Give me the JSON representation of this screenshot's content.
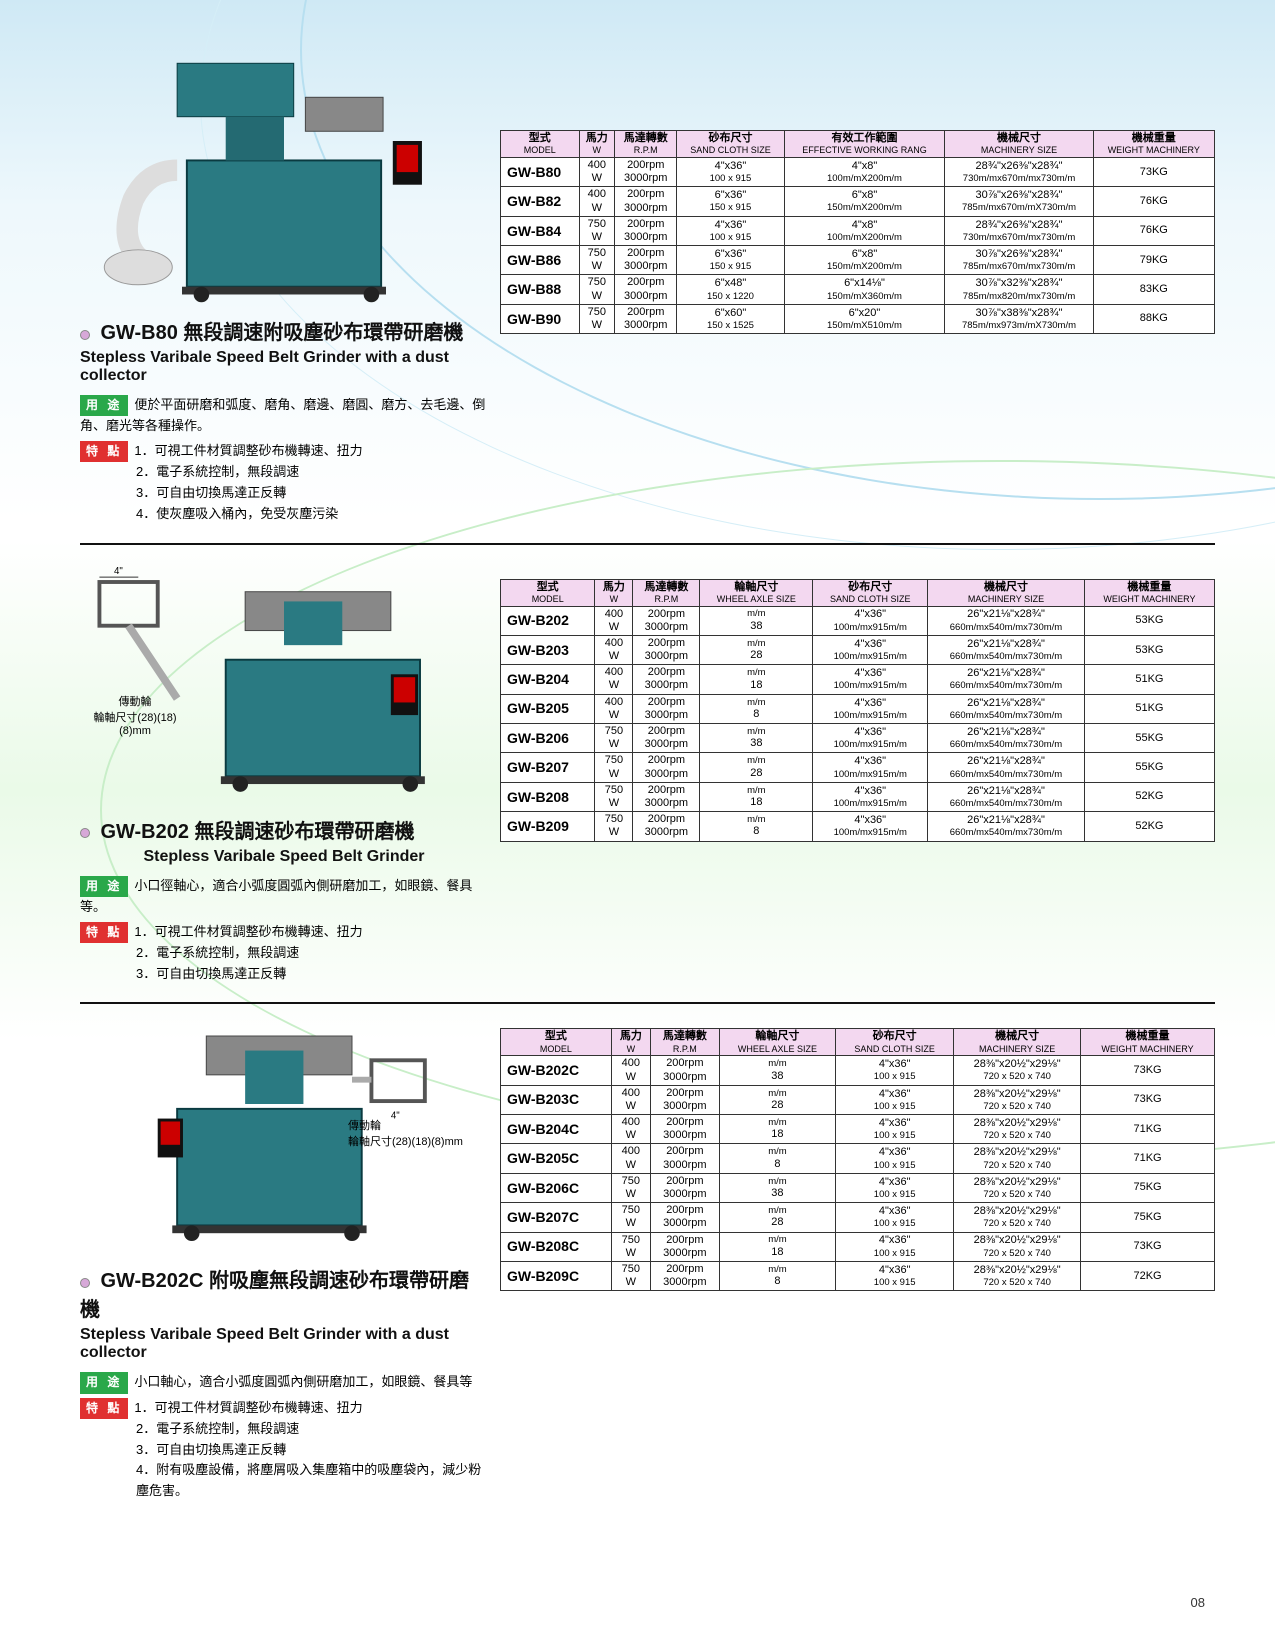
{
  "page_number": "08",
  "colors": {
    "header_bg": "#f3d8f0",
    "border": "#333333",
    "tag_use": "#2aa84a",
    "tag_feat": "#e03030",
    "bullet": "#d7a8d8"
  },
  "labels": {
    "use": "用 途",
    "feat": "特 點"
  },
  "section1": {
    "zh_title": "GW-B80 無段調速附吸塵砂布環帶研磨機",
    "en_title": "Stepless Varibale Speed Belt Grinder with a dust collector",
    "use_text": "便於平面研磨和弧度、磨角、磨邊、磨圓、磨方、去毛邊、倒角、磨光等各種操作。",
    "features": [
      "1．可視工件材質調整砂布機轉速、扭力",
      "2．電子系統控制，無段調速",
      "3．可自由切換馬達正反轉",
      "4．使灰塵吸入桶內，免受灰塵污染"
    ],
    "headers": [
      {
        "zh": "型式",
        "en": "MODEL"
      },
      {
        "zh": "馬力",
        "en": "W"
      },
      {
        "zh": "馬達轉數",
        "en": "R.P.M"
      },
      {
        "zh": "砂布尺寸",
        "en": "SAND CLOTH SIZE"
      },
      {
        "zh": "有效工作範圍",
        "en": "EFFECTIVE WORKING RANG"
      },
      {
        "zh": "機械尺寸",
        "en": "MACHINERY SIZE"
      },
      {
        "zh": "機械重量",
        "en": "WEIGHT MACHINERY"
      }
    ],
    "rows": [
      {
        "model": "GW-B80",
        "w": "400 W",
        "rpm": "200rpm / 3000rpm",
        "sand_top": "4\"x36\"",
        "sand_bot": "100 x 915",
        "eff_top": "4\"x8\"",
        "eff_bot": "100m/mX200m/m",
        "size_top": "28¾\"x26⅜\"x28¾\"",
        "size_bot": "730m/mx670m/mx730m/m",
        "wt": "73KG"
      },
      {
        "model": "GW-B82",
        "w": "400 W",
        "rpm": "200rpm / 3000rpm",
        "sand_top": "6\"x36\"",
        "sand_bot": "150 x 915",
        "eff_top": "6\"x8\"",
        "eff_bot": "150m/mX200m/m",
        "size_top": "30⅞\"x26⅜\"x28¾\"",
        "size_bot": "785m/mx670m/mX730m/m",
        "wt": "76KG"
      },
      {
        "model": "GW-B84",
        "w": "750 W",
        "rpm": "200rpm / 3000rpm",
        "sand_top": "4\"x36\"",
        "sand_bot": "100 x 915",
        "eff_top": "4\"x8\"",
        "eff_bot": "100m/mX200m/m",
        "size_top": "28¾\"x26⅜\"x28¾\"",
        "size_bot": "730m/mx670m/mx730m/m",
        "wt": "76KG"
      },
      {
        "model": "GW-B86",
        "w": "750 W",
        "rpm": "200rpm / 3000rpm",
        "sand_top": "6\"x36\"",
        "sand_bot": "150 x 915",
        "eff_top": "6\"x8\"",
        "eff_bot": "150m/mX200m/m",
        "size_top": "30⅞\"x26⅜\"x28¾\"",
        "size_bot": "785m/mx670m/mx730m/m",
        "wt": "79KG"
      },
      {
        "model": "GW-B88",
        "w": "750 W",
        "rpm": "200rpm / 3000rpm",
        "sand_top": "6\"x48\"",
        "sand_bot": "150 x 1220",
        "eff_top": "6\"x14⅛\"",
        "eff_bot": "150m/mX360m/m",
        "size_top": "30⅞\"x32⅜\"x28¾\"",
        "size_bot": "785m/mx820m/mx730m/m",
        "wt": "83KG"
      },
      {
        "model": "GW-B90",
        "w": "750 W",
        "rpm": "200rpm / 3000rpm",
        "sand_top": "6\"x60\"",
        "sand_bot": "150 x 1525",
        "eff_top": "6\"x20\"",
        "eff_bot": "150m/mX510m/m",
        "size_top": "30⅞\"x38⅜\"x28¾\"",
        "size_bot": "785m/mx973m/mX730m/m",
        "wt": "88KG"
      }
    ]
  },
  "section2": {
    "zh_title": "GW-B202 無段調速砂布環帶研磨機",
    "en_title": "Stepless Varibale Speed Belt Grinder",
    "aux_label1": "傳動輪",
    "aux_label2": "輪軸尺寸(28)(18)(8)mm",
    "use_text": "小口徑軸心，適合小弧度圓弧內側研磨加工，如眼鏡、餐具等。",
    "features": [
      "1．可視工件材質調整砂布機轉速、扭力",
      "2．電子系統控制，無段調速",
      "3．可自由切換馬達正反轉"
    ],
    "headers": [
      {
        "zh": "型式",
        "en": "MODEL"
      },
      {
        "zh": "馬力",
        "en": "W"
      },
      {
        "zh": "馬達轉數",
        "en": "R.P.M"
      },
      {
        "zh": "輪軸尺寸",
        "en": "WHEEL AXLE SIZE"
      },
      {
        "zh": "砂布尺寸",
        "en": "SAND CLOTH SIZE"
      },
      {
        "zh": "機械尺寸",
        "en": "MACHINERY SIZE"
      },
      {
        "zh": "機械重量",
        "en": "WEIGHT MACHINERY"
      }
    ],
    "rows": [
      {
        "model": "GW-B202",
        "w": "400 W",
        "rpm": "200rpm / 3000rpm",
        "axle": "38",
        "sand_top": "4\"x36\"",
        "sand_bot": "100m/mx915m/m",
        "size_top": "26\"x21⅛\"x28¾\"",
        "size_bot": "660m/mx540m/mx730m/m",
        "wt": "53KG"
      },
      {
        "model": "GW-B203",
        "w": "400 W",
        "rpm": "200rpm / 3000rpm",
        "axle": "28",
        "sand_top": "4\"x36\"",
        "sand_bot": "100m/mx915m/m",
        "size_top": "26\"x21⅛\"x28¾\"",
        "size_bot": "660m/mx540m/mx730m/m",
        "wt": "53KG"
      },
      {
        "model": "GW-B204",
        "w": "400 W",
        "rpm": "200rpm / 3000rpm",
        "axle": "18",
        "sand_top": "4\"x36\"",
        "sand_bot": "100m/mx915m/m",
        "size_top": "26\"x21⅛\"x28¾\"",
        "size_bot": "660m/mx540m/mx730m/m",
        "wt": "51KG"
      },
      {
        "model": "GW-B205",
        "w": "400 W",
        "rpm": "200rpm / 3000rpm",
        "axle": "8",
        "sand_top": "4\"x36\"",
        "sand_bot": "100m/mx915m/m",
        "size_top": "26\"x21⅛\"x28¾\"",
        "size_bot": "660m/mx540m/mx730m/m",
        "wt": "51KG"
      },
      {
        "model": "GW-B206",
        "w": "750 W",
        "rpm": "200rpm / 3000rpm",
        "axle": "38",
        "sand_top": "4\"x36\"",
        "sand_bot": "100m/mx915m/m",
        "size_top": "26\"x21⅛\"x28¾\"",
        "size_bot": "660m/mx540m/mx730m/m",
        "wt": "55KG"
      },
      {
        "model": "GW-B207",
        "w": "750 W",
        "rpm": "200rpm / 3000rpm",
        "axle": "28",
        "sand_top": "4\"x36\"",
        "sand_bot": "100m/mx915m/m",
        "size_top": "26\"x21⅛\"x28¾\"",
        "size_bot": "660m/mx540m/mx730m/m",
        "wt": "55KG"
      },
      {
        "model": "GW-B208",
        "w": "750 W",
        "rpm": "200rpm / 3000rpm",
        "axle": "18",
        "sand_top": "4\"x36\"",
        "sand_bot": "100m/mx915m/m",
        "size_top": "26\"x21⅛\"x28¾\"",
        "size_bot": "660m/mx540m/mx730m/m",
        "wt": "52KG"
      },
      {
        "model": "GW-B209",
        "w": "750 W",
        "rpm": "200rpm / 3000rpm",
        "axle": "8",
        "sand_top": "4\"x36\"",
        "sand_bot": "100m/mx915m/m",
        "size_top": "26\"x21⅛\"x28¾\"",
        "size_bot": "660m/mx540m/mx730m/m",
        "wt": "52KG"
      }
    ]
  },
  "section3": {
    "zh_title": "GW-B202C 附吸塵無段調速砂布環帶研磨機",
    "en_title": "Stepless Varibale Speed Belt Grinder with a dust collector",
    "aux_label1": "傳動輪",
    "aux_label2": "輪軸尺寸(28)(18)(8)mm",
    "use_text": "小口軸心，適合小弧度圓弧內側研磨加工，如眼鏡、餐具等",
    "features": [
      "1．可視工件材質調整砂布機轉速、扭力",
      "2．電子系統控制，無段調速",
      "3．可自由切換馬達正反轉",
      "4．附有吸塵設備，將塵屑吸入集塵箱中的吸塵袋內，減少粉塵危害。"
    ],
    "headers": [
      {
        "zh": "型式",
        "en": "MODEL"
      },
      {
        "zh": "馬力",
        "en": "W"
      },
      {
        "zh": "馬達轉數",
        "en": "R.P.M"
      },
      {
        "zh": "輪軸尺寸",
        "en": "WHEEL AXLE SIZE"
      },
      {
        "zh": "砂布尺寸",
        "en": "SAND CLOTH SIZE"
      },
      {
        "zh": "機械尺寸",
        "en": "MACHINERY SIZE"
      },
      {
        "zh": "機械重量",
        "en": "WEIGHT MACHINERY"
      }
    ],
    "rows": [
      {
        "model": "GW-B202C",
        "w": "400 W",
        "rpm": "200rpm / 3000rpm",
        "axle": "38",
        "sand_top": "4\"x36\"",
        "sand_bot": "100 x 915",
        "size_top": "28⅜\"x20½\"x29⅛\"",
        "size_bot": "720 x 520 x 740",
        "wt": "73KG"
      },
      {
        "model": "GW-B203C",
        "w": "400 W",
        "rpm": "200rpm / 3000rpm",
        "axle": "28",
        "sand_top": "4\"x36\"",
        "sand_bot": "100 x 915",
        "size_top": "28⅜\"x20½\"x29⅛\"",
        "size_bot": "720 x 520 x 740",
        "wt": "73KG"
      },
      {
        "model": "GW-B204C",
        "w": "400 W",
        "rpm": "200rpm / 3000rpm",
        "axle": "18",
        "sand_top": "4\"x36\"",
        "sand_bot": "100 x 915",
        "size_top": "28⅜\"x20½\"x29⅛\"",
        "size_bot": "720 x 520 x 740",
        "wt": "71KG"
      },
      {
        "model": "GW-B205C",
        "w": "400 W",
        "rpm": "200rpm / 3000rpm",
        "axle": "8",
        "sand_top": "4\"x36\"",
        "sand_bot": "100 x 915",
        "size_top": "28⅜\"x20½\"x29⅛\"",
        "size_bot": "720 x 520 x 740",
        "wt": "71KG"
      },
      {
        "model": "GW-B206C",
        "w": "750 W",
        "rpm": "200rpm / 3000rpm",
        "axle": "38",
        "sand_top": "4\"x36\"",
        "sand_bot": "100 x 915",
        "size_top": "28⅜\"x20½\"x29⅛\"",
        "size_bot": "720 x 520 x 740",
        "wt": "75KG"
      },
      {
        "model": "GW-B207C",
        "w": "750 W",
        "rpm": "200rpm / 3000rpm",
        "axle": "28",
        "sand_top": "4\"x36\"",
        "sand_bot": "100 x 915",
        "size_top": "28⅜\"x20½\"x29⅛\"",
        "size_bot": "720 x 520 x 740",
        "wt": "75KG"
      },
      {
        "model": "GW-B208C",
        "w": "750 W",
        "rpm": "200rpm / 3000rpm",
        "axle": "18",
        "sand_top": "4\"x36\"",
        "sand_bot": "100 x 915",
        "size_top": "28⅜\"x20½\"x29⅛\"",
        "size_bot": "720 x 520 x 740",
        "wt": "73KG"
      },
      {
        "model": "GW-B209C",
        "w": "750 W",
        "rpm": "200rpm / 3000rpm",
        "axle": "8",
        "sand_top": "4\"x36\"",
        "sand_bot": "100 x 915",
        "size_top": "28⅜\"x20½\"x29⅛\"",
        "size_bot": "720 x 520 x 740",
        "wt": "72KG"
      }
    ]
  }
}
